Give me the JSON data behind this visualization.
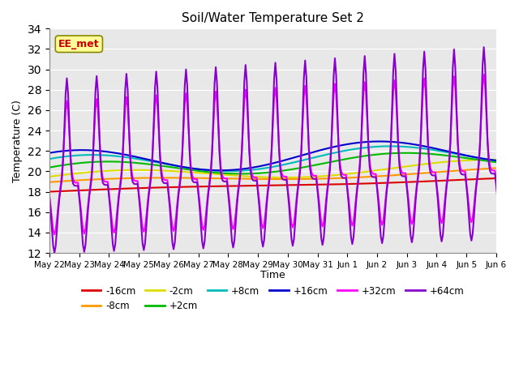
{
  "title": "Soil/Water Temperature Set 2",
  "xlabel": "Time",
  "ylabel": "Temperature (C)",
  "ylim": [
    12,
    34
  ],
  "yticks": [
    12,
    14,
    16,
    18,
    20,
    22,
    24,
    26,
    28,
    30,
    32,
    34
  ],
  "annotation": "EE_met",
  "annotation_color": "#cc0000",
  "annotation_bg": "#ffff99",
  "annotation_border": "#888800",
  "bg_color": "#e8e8e8",
  "series": {
    "-16cm": {
      "color": "#dd0000",
      "lw": 1.5
    },
    "-8cm": {
      "color": "#ff9900",
      "lw": 1.5
    },
    "-2cm": {
      "color": "#dddd00",
      "lw": 1.5
    },
    "+2cm": {
      "color": "#00bb00",
      "lw": 1.5
    },
    "+8cm": {
      "color": "#00bbbb",
      "lw": 1.5
    },
    "+16cm": {
      "color": "#0000cc",
      "lw": 1.5
    },
    "+32cm": {
      "color": "#ff00ff",
      "lw": 1.5
    },
    "+64cm": {
      "color": "#8800cc",
      "lw": 1.5
    }
  },
  "xtick_labels": [
    "May 22",
    "May 23",
    "May 24",
    "May 25",
    "May 26",
    "May 27",
    "May 28",
    "May 29",
    "May 30",
    "May 31",
    "Jun 1",
    "Jun 2",
    "Jun 3",
    "Jun 4",
    "Jun 5",
    "Jun 6"
  ]
}
